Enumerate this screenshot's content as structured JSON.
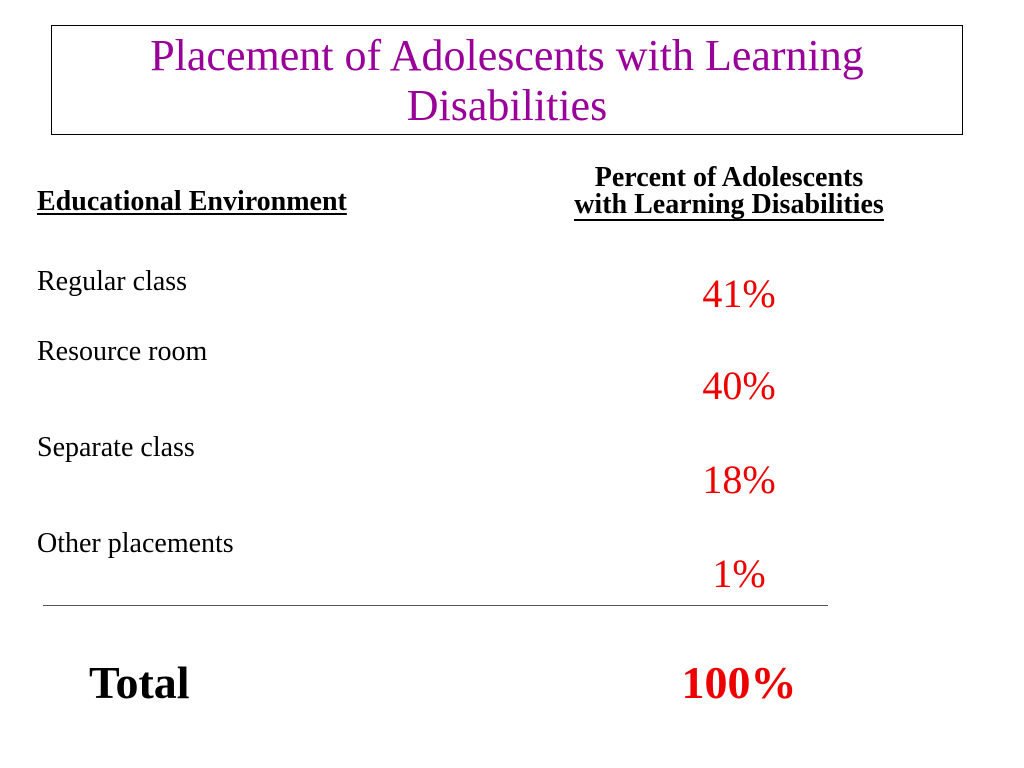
{
  "slide": {
    "title": "Placement of Adolescents with Learning Disabilities",
    "title_color": "#990099",
    "value_color": "#ee0000"
  },
  "table": {
    "header_left": "Educational Environment",
    "header_right_line1": "Percent of Adolescents",
    "header_right_line2": "with Learning  Disabilities",
    "rows": [
      {
        "label": "Regular class",
        "value": "41%"
      },
      {
        "label": "Resource room",
        "value": "40%"
      },
      {
        "label": "Separate class",
        "value": "18%"
      },
      {
        "label": "Other placements",
        "value": "1%"
      }
    ],
    "total_label": "Total",
    "total_value": "100%"
  }
}
